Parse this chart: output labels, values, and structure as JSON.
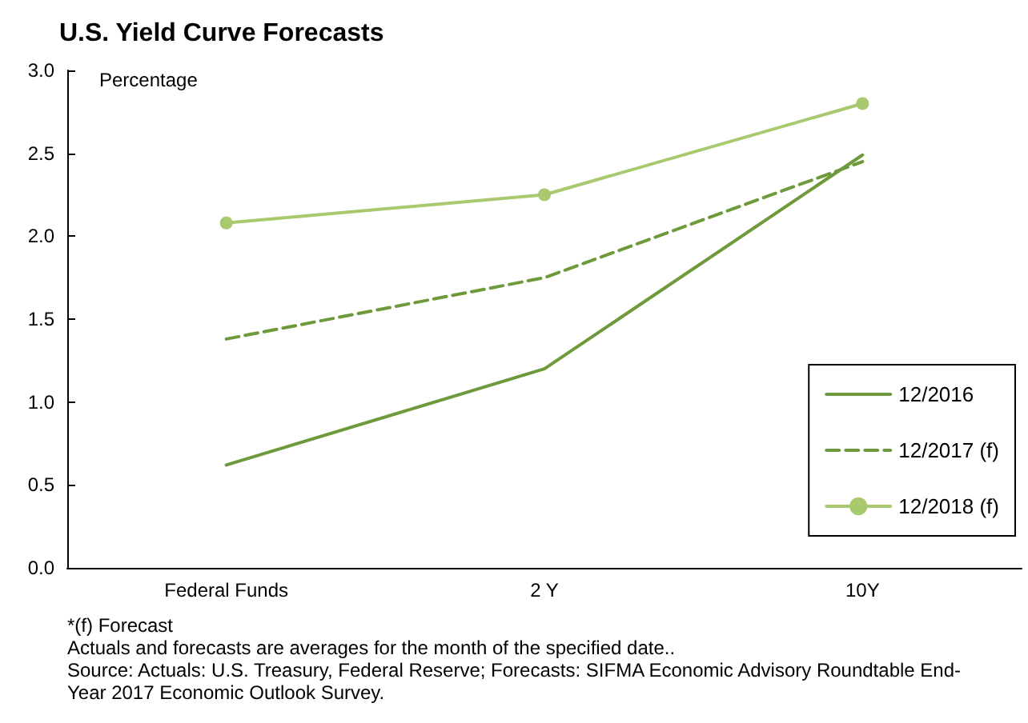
{
  "chart_data": {
    "type": "line",
    "title": "U.S. Yield Curve Forecasts",
    "ylabel": "Percentage",
    "categories": [
      "Federal Funds",
      "2 Y",
      "10Y"
    ],
    "series": [
      {
        "name": "12/2016",
        "color": "#6e9a3c",
        "values": [
          0.62,
          1.2,
          2.49
        ],
        "line_style": "solid",
        "marker": "none"
      },
      {
        "name": "12/2017 (f)",
        "color": "#6e9a3c",
        "values": [
          1.38,
          1.75,
          2.45
        ],
        "line_style": "dashed",
        "marker": "none"
      },
      {
        "name": "12/2018 (f)",
        "color": "#a9c96e",
        "values": [
          2.08,
          2.25,
          2.8
        ],
        "line_style": "solid",
        "marker": "circle"
      }
    ],
    "ylim": [
      0,
      3
    ],
    "yticks": [
      {
        "value": 0,
        "label": "0.0"
      },
      0.5,
      {
        "value": 1,
        "label": "1.0"
      },
      1.5,
      {
        "value": 2,
        "label": "2.0"
      },
      2.5,
      {
        "value": 3,
        "label": "3.0"
      }
    ],
    "grid": false,
    "legend": "right",
    "annotations": [
      "*(f) Forecast",
      "Actuals and forecasts are averages for the month of the specified date..",
      "Source: Actuals: U.S. Treasury, Federal Reserve; Forecasts: SIFMA Economic Advisory Roundtable End-Year 2017 Economic Outlook Survey."
    ]
  }
}
